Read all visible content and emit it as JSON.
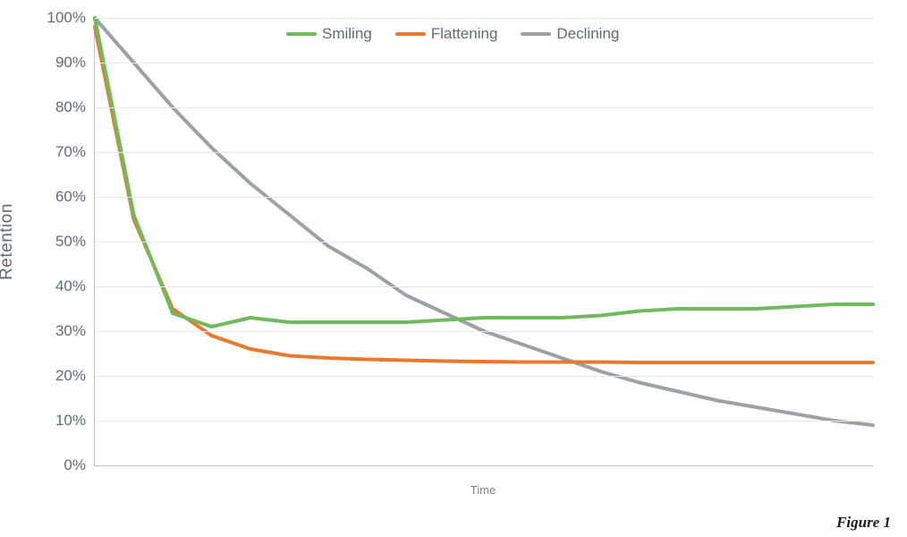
{
  "chart": {
    "type": "line",
    "background_color": "#ffffff",
    "grid_color": "#e6e9eb",
    "axis_color": "#bfc5c9",
    "tick_label_color": "#5f6b74",
    "tick_fontsize": 17,
    "axis_title_fontsize": 19,
    "y_axis_title": "Retention",
    "x_axis_title": "Time",
    "ylim": [
      0,
      100
    ],
    "ytick_step": 10,
    "ytick_suffix": "%",
    "line_width": 4,
    "legend": {
      "items": [
        {
          "label": "Smiling",
          "color": "#6fba5a"
        },
        {
          "label": "Flattening",
          "color": "#e8792f"
        },
        {
          "label": "Declining",
          "color": "#9aa1a7"
        }
      ],
      "fontsize": 17,
      "swatch_width": 34
    },
    "series": [
      {
        "name": "Declining",
        "color": "#9aa1a7",
        "x": [
          0,
          1,
          2,
          3,
          4,
          5,
          6,
          7,
          8,
          9,
          10,
          11,
          12,
          13,
          14,
          15,
          16,
          17,
          18,
          19,
          20
        ],
        "y": [
          100,
          90,
          80,
          71,
          63,
          56,
          49,
          44,
          38,
          34,
          30,
          27,
          24,
          21,
          18.5,
          16.5,
          14.5,
          13,
          11.5,
          10,
          9
        ]
      },
      {
        "name": "Flattening",
        "color": "#e8792f",
        "x": [
          0,
          1,
          2,
          3,
          4,
          5,
          6,
          7,
          8,
          9,
          10,
          11,
          12,
          13,
          14,
          15,
          16,
          17,
          18,
          19,
          20
        ],
        "y": [
          98,
          55,
          35,
          29,
          26,
          24.5,
          24,
          23.7,
          23.5,
          23.3,
          23.2,
          23.1,
          23.1,
          23.1,
          23,
          23,
          23,
          23,
          23,
          23,
          23
        ]
      },
      {
        "name": "Smiling",
        "color": "#6fba5a",
        "x": [
          0,
          1,
          2,
          3,
          4,
          5,
          6,
          7,
          8,
          9,
          10,
          11,
          12,
          13,
          14,
          15,
          16,
          17,
          18,
          19,
          20
        ],
        "y": [
          100,
          56,
          34,
          31,
          33,
          32,
          32,
          32,
          32,
          32.5,
          33,
          33,
          33,
          33.5,
          34.5,
          35,
          35,
          35,
          35.5,
          36,
          36
        ]
      }
    ],
    "x_domain": [
      0,
      20
    ]
  },
  "caption": "Figure 1"
}
